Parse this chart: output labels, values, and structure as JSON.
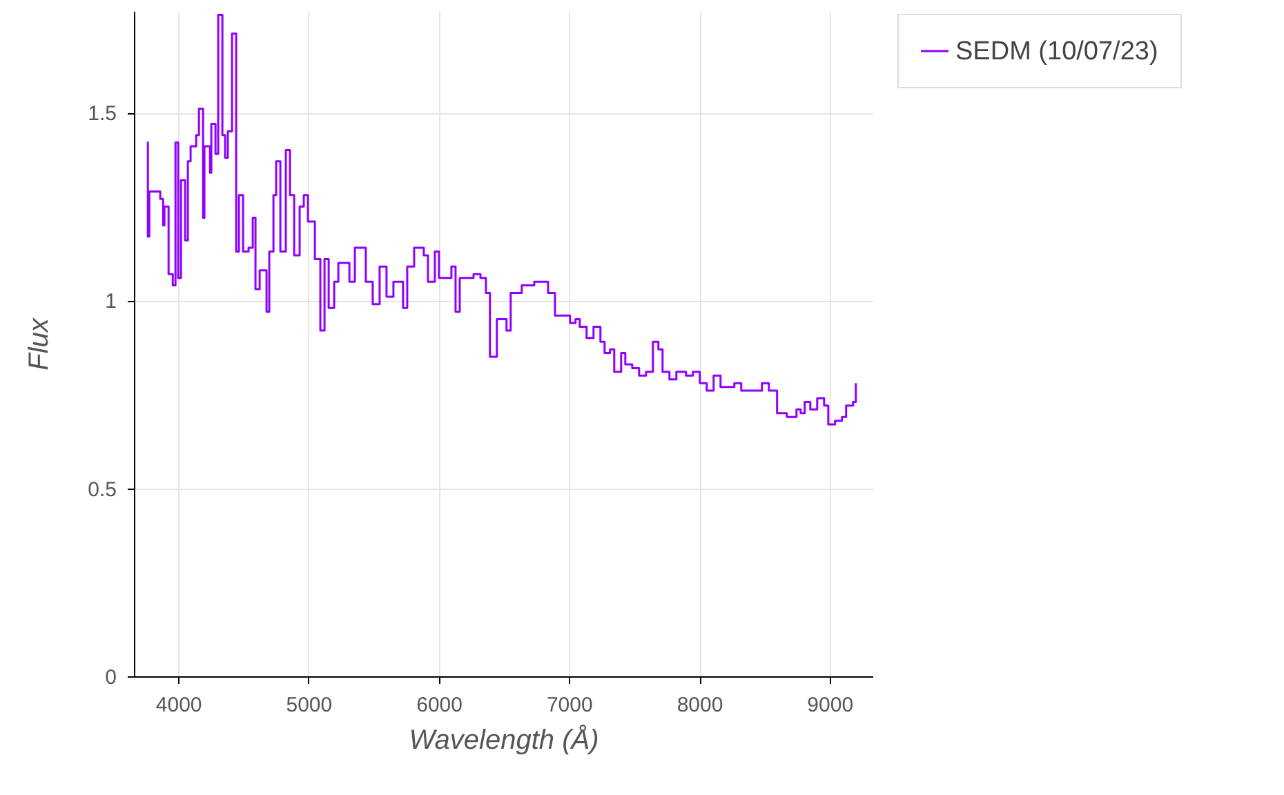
{
  "chart_data": {
    "type": "step",
    "xlabel": "Wavelength (Å)",
    "ylabel": "Flux",
    "xlim": [
      3660,
      9330
    ],
    "ylim": [
      0,
      1.77
    ],
    "xticks": [
      4000,
      5000,
      6000,
      7000,
      8000,
      9000
    ],
    "yticks": [
      0,
      0.5,
      1,
      1.5
    ],
    "grid": true,
    "legend": "top right",
    "series": [
      {
        "name": "SEDM (10/07/23)",
        "color": "#8f00ff",
        "x": [
          3760,
          3767,
          3778,
          3831,
          3862,
          3884,
          3894,
          3926,
          3958,
          3979,
          4000,
          4021,
          4053,
          4074,
          4095,
          4138,
          4159,
          4191,
          4201,
          4244,
          4254,
          4286,
          4307,
          4339,
          4360,
          4381,
          4413,
          4445,
          4466,
          4498,
          4540,
          4572,
          4593,
          4625,
          4678,
          4699,
          4731,
          4752,
          4784,
          4826,
          4858,
          4890,
          4932,
          4964,
          4996,
          5049,
          5091,
          5123,
          5155,
          5197,
          5229,
          5282,
          5314,
          5356,
          5409,
          5440,
          5493,
          5546,
          5599,
          5652,
          5726,
          5758,
          5811,
          5885,
          5917,
          5970,
          6002,
          6097,
          6129,
          6161,
          6267,
          6320,
          6362,
          6393,
          6446,
          6520,
          6552,
          6637,
          6733,
          6839,
          6892,
          6976,
          7008,
          7050,
          7082,
          7135,
          7188,
          7241,
          7273,
          7315,
          7347,
          7400,
          7432,
          7485,
          7538,
          7591,
          7644,
          7686,
          7718,
          7771,
          7824,
          7898,
          7951,
          8004,
          8057,
          8110,
          8163,
          8269,
          8322,
          8428,
          8481,
          8534,
          8597,
          8672,
          8746,
          8778,
          8809,
          8852,
          8905,
          8958,
          8990,
          9042,
          9095,
          9127,
          9180,
          9201
        ],
        "values": [
          1.42,
          1.17,
          1.29,
          1.29,
          1.27,
          1.2,
          1.25,
          1.07,
          1.04,
          1.42,
          1.06,
          1.32,
          1.16,
          1.37,
          1.41,
          1.44,
          1.51,
          1.22,
          1.41,
          1.34,
          1.47,
          1.39,
          1.76,
          1.44,
          1.38,
          1.45,
          1.71,
          1.13,
          1.28,
          1.13,
          1.14,
          1.22,
          1.03,
          1.08,
          0.97,
          1.13,
          1.28,
          1.37,
          1.13,
          1.4,
          1.28,
          1.12,
          1.25,
          1.28,
          1.21,
          1.11,
          0.92,
          1.11,
          0.98,
          1.05,
          1.1,
          1.1,
          1.05,
          1.14,
          1.14,
          1.05,
          0.99,
          1.09,
          1.01,
          1.05,
          0.98,
          1.09,
          1.14,
          1.12,
          1.05,
          1.13,
          1.06,
          1.09,
          0.97,
          1.06,
          1.07,
          1.06,
          1.02,
          0.85,
          0.95,
          0.92,
          1.02,
          1.04,
          1.05,
          1.02,
          0.96,
          0.96,
          0.94,
          0.95,
          0.93,
          0.9,
          0.93,
          0.89,
          0.86,
          0.87,
          0.81,
          0.86,
          0.83,
          0.82,
          0.8,
          0.81,
          0.89,
          0.87,
          0.81,
          0.79,
          0.81,
          0.8,
          0.81,
          0.78,
          0.76,
          0.8,
          0.77,
          0.78,
          0.76,
          0.76,
          0.78,
          0.76,
          0.7,
          0.69,
          0.71,
          0.7,
          0.73,
          0.71,
          0.74,
          0.72,
          0.67,
          0.68,
          0.69,
          0.72,
          0.73,
          0.78
        ]
      }
    ]
  }
}
